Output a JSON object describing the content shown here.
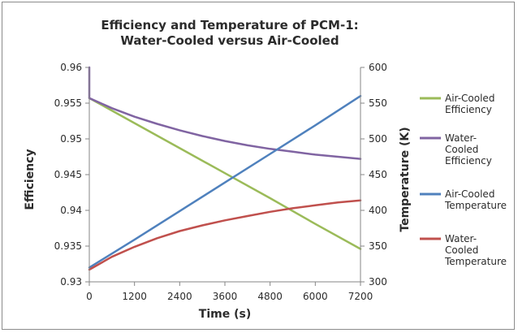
{
  "chart_data": {
    "type": "line",
    "title": [
      "Efficiency and Temperature of PCM-1:",
      "Water-Cooled versus Air-Cooled"
    ],
    "xlabel": "Time (s)",
    "ylabel_left": "Efficiency",
    "ylabel_right": "Temperature (K)",
    "x_ticks": [
      "0",
      "1200",
      "2400",
      "3600",
      "4800",
      "6000",
      "7200"
    ],
    "x_tick_values": [
      0,
      1200,
      2400,
      3600,
      4800,
      6000,
      7200
    ],
    "xlim": [
      0,
      7200
    ],
    "y_left_ticks": [
      "0.93",
      "0.935",
      "0.94",
      "0.945",
      "0.95",
      "0.955",
      "0.96"
    ],
    "y_left_tick_values": [
      0.93,
      0.935,
      0.94,
      0.945,
      0.95,
      0.955,
      0.96
    ],
    "y_left_lim": [
      0.93,
      0.96
    ],
    "y_right_ticks": [
      "300",
      "350",
      "400",
      "450",
      "500",
      "550",
      "600"
    ],
    "y_right_tick_values": [
      300,
      350,
      400,
      450,
      500,
      550,
      600
    ],
    "y_right_lim": [
      300,
      600
    ],
    "grid": false,
    "legend_position": "right",
    "series": [
      {
        "name_lines": [
          "Air-Cooled",
          "Efficiency"
        ],
        "axis": "left",
        "color": "#9bbb59",
        "x": [
          0,
          1200,
          2400,
          3600,
          4800,
          6000,
          7200
        ],
        "y": [
          0.9557,
          0.9522,
          0.9487,
          0.9452,
          0.9417,
          0.9381,
          0.9346
        ]
      },
      {
        "name_lines": [
          "Water-",
          "Cooled",
          "Efficiency"
        ],
        "axis": "left",
        "color": "#8064a2",
        "x": [
          0,
          0,
          600,
          1200,
          1800,
          2400,
          3000,
          3600,
          4200,
          4800,
          5400,
          6000,
          6600,
          7200
        ],
        "y": [
          0.96,
          0.9557,
          0.9543,
          0.9531,
          0.9521,
          0.9512,
          0.9504,
          0.9497,
          0.9491,
          0.9486,
          0.9482,
          0.9478,
          0.9475,
          0.9472
        ]
      },
      {
        "name_lines": [
          "Air-Cooled",
          "Temperature"
        ],
        "axis": "right",
        "color": "#4f81bd",
        "x": [
          0,
          1200,
          2400,
          3600,
          4800,
          6000,
          7200
        ],
        "y": [
          320,
          359,
          399,
          439,
          479,
          519,
          560
        ]
      },
      {
        "name_lines": [
          "Water-",
          "Cooled",
          "Temperature"
        ],
        "axis": "right",
        "color": "#c0504d",
        "x": [
          0,
          600,
          1200,
          1800,
          2400,
          3000,
          3600,
          4200,
          4800,
          5400,
          6000,
          6600,
          7200
        ],
        "y": [
          317,
          335,
          349,
          361,
          371,
          379,
          386,
          392,
          398,
          403,
          407,
          411,
          414
        ]
      }
    ]
  }
}
